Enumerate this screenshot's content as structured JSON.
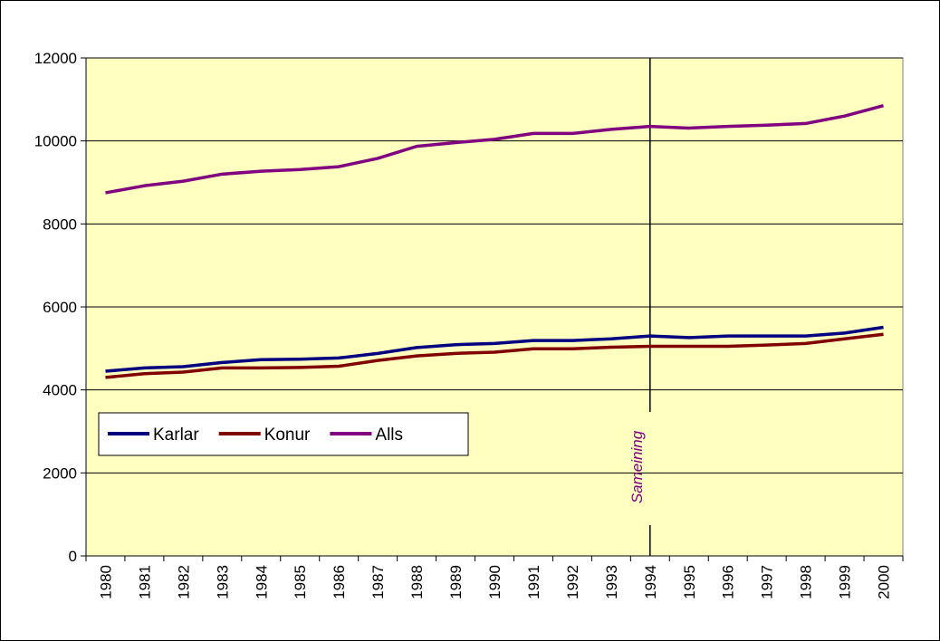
{
  "chart_data": {
    "type": "line",
    "categories": [
      "1980",
      "1981",
      "1982",
      "1983",
      "1984",
      "1985",
      "1986",
      "1987",
      "1988",
      "1989",
      "1990",
      "1991",
      "1992",
      "1993",
      "1994",
      "1995",
      "1996",
      "1997",
      "1998",
      "1999",
      "2000"
    ],
    "series": [
      {
        "name": "Karlar",
        "color": "#000080",
        "values": [
          4450,
          4530,
          4560,
          4660,
          4730,
          4740,
          4770,
          4880,
          5020,
          5090,
          5120,
          5190,
          5190,
          5230,
          5300,
          5260,
          5300,
          5300,
          5300,
          5370,
          5510
        ]
      },
      {
        "name": "Konur",
        "color": "#800000",
        "values": [
          4300,
          4390,
          4430,
          4530,
          4530,
          4540,
          4570,
          4710,
          4820,
          4880,
          4910,
          4990,
          4990,
          5030,
          5050,
          5050,
          5050,
          5080,
          5120,
          5230,
          5340
        ]
      },
      {
        "name": "Alls",
        "color": "#800080",
        "values": [
          8750,
          8920,
          9030,
          9200,
          9270,
          9310,
          9380,
          9580,
          9870,
          9960,
          10040,
          10180,
          10180,
          10280,
          10350,
          10310,
          10350,
          10380,
          10420,
          10600,
          10850
        ]
      }
    ],
    "ylim": [
      0,
      12000
    ],
    "yticks": [
      0,
      2000,
      4000,
      6000,
      8000,
      10000,
      12000
    ],
    "grid": true,
    "legend": "left",
    "background": "#ffffc0",
    "annotations": [
      {
        "text": "Sameining",
        "x": "1994"
      }
    ]
  }
}
